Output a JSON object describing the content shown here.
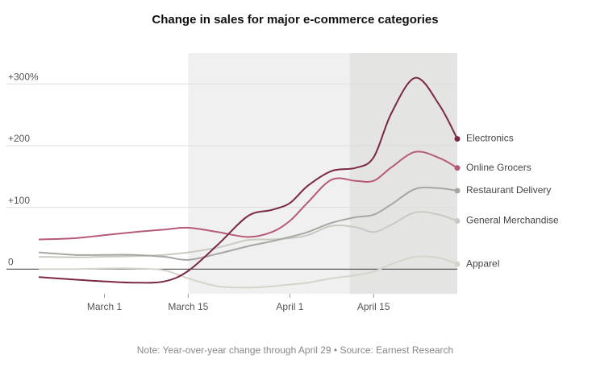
{
  "chart_data": {
    "type": "line",
    "title": "Change in sales for major e-commerce categories",
    "note": "Note: Year-over-year change through April 29 • Source: Earnest Research",
    "x": [
      -11,
      -5,
      0,
      5,
      10,
      14,
      19,
      24,
      28,
      31,
      34,
      38,
      42,
      45,
      48,
      52,
      56,
      59
    ],
    "xlim": [
      -11,
      59
    ],
    "xticks": [
      {
        "value": 0,
        "label": "March 1"
      },
      {
        "value": 14,
        "label": "March 15"
      },
      {
        "value": 31,
        "label": "April 1"
      },
      {
        "value": 45,
        "label": "April 15"
      }
    ],
    "ylim": [
      -40,
      350
    ],
    "yticks": [
      0,
      {
        "value": 100,
        "label": "+100"
      },
      {
        "value": 200,
        "label": "+200"
      },
      {
        "value": 300,
        "label": "+300%"
      }
    ],
    "grid": true,
    "shaded_regions": [
      {
        "x": [
          14,
          41
        ],
        "color": "#f0f0f0"
      },
      {
        "x": [
          41,
          59
        ],
        "color": "#e4e4e2"
      }
    ],
    "series": [
      {
        "name": "Apparel",
        "color": "#d6d4ca",
        "values": [
          0,
          0,
          1,
          1,
          -2,
          -15,
          -28,
          -30,
          -28,
          -25,
          -22,
          -15,
          -10,
          -4,
          8,
          20,
          18,
          8
        ]
      },
      {
        "name": "General Merchandise",
        "color": "#cbc9c1",
        "values": [
          20,
          19,
          20,
          21,
          23,
          27,
          35,
          47,
          48,
          50,
          55,
          70,
          68,
          60,
          72,
          92,
          88,
          78
        ]
      },
      {
        "name": "Restaurant Delivery",
        "color": "#a6a6a2",
        "values": [
          27,
          23,
          23,
          23,
          20,
          15,
          25,
          37,
          45,
          52,
          60,
          75,
          84,
          88,
          105,
          130,
          131,
          127
        ]
      },
      {
        "name": "Online Grocers",
        "color": "#b65a7a",
        "values": [
          48,
          50,
          55,
          60,
          64,
          67,
          60,
          52,
          60,
          78,
          108,
          145,
          143,
          143,
          165,
          190,
          180,
          164
        ]
      },
      {
        "name": "Electronics",
        "color": "#7a2848",
        "values": [
          -13,
          -17,
          -20,
          -22,
          -20,
          -3,
          40,
          86,
          96,
          107,
          135,
          159,
          164,
          181,
          253,
          310,
          266,
          211
        ]
      }
    ]
  }
}
